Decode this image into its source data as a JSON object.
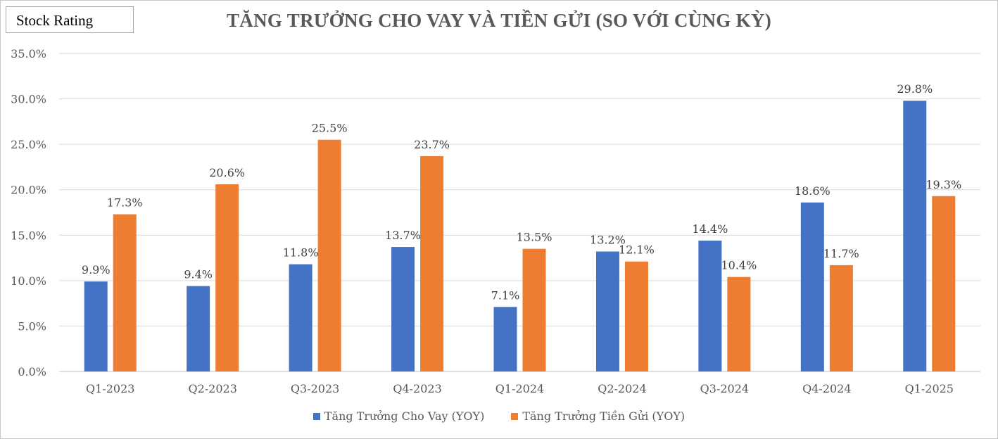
{
  "badge": {
    "label": "Stock Rating"
  },
  "chart_data": {
    "type": "bar",
    "title": "TĂNG TRƯỞNG CHO VAY VÀ TIỀN GỬI (SO VỚI CÙNG  KỲ)",
    "categories": [
      "Q1-2023",
      "Q2-2023",
      "Q3-2023",
      "Q4-2023",
      "Q1-2024",
      "Q2-2024",
      "Q3-2024",
      "Q4-2024",
      "Q1-2025"
    ],
    "series": [
      {
        "name": "Tăng Trưởng Cho Vay (YOY)",
        "color": "#4472c4",
        "values": [
          9.9,
          9.4,
          11.8,
          13.7,
          7.1,
          13.2,
          14.4,
          18.6,
          29.8
        ],
        "labels": [
          "9.9%",
          "9.4%",
          "11.8%",
          "13.7%",
          "7.1%",
          "13.2%",
          "14.4%",
          "18.6%",
          "29.8%"
        ]
      },
      {
        "name": "Tăng Trưởng Tiền Gửi (YOY)",
        "color": "#ed7d31",
        "values": [
          17.3,
          20.6,
          25.5,
          23.7,
          13.5,
          12.1,
          10.4,
          11.7,
          19.3
        ],
        "labels": [
          "17.3%",
          "20.6%",
          "25.5%",
          "23.7%",
          "13.5%",
          "12.1%",
          "10.4%",
          "11.7%",
          "19.3%"
        ]
      }
    ],
    "ylim": [
      0,
      35
    ],
    "ytick_values": [
      0,
      5,
      10,
      15,
      20,
      25,
      30,
      35
    ],
    "ytick_labels": [
      "0.0%",
      "5.0%",
      "10.0%",
      "15.0%",
      "20.0%",
      "25.0%",
      "30.0%",
      "35.0%"
    ],
    "grid": true,
    "legend_position": "bottom"
  }
}
